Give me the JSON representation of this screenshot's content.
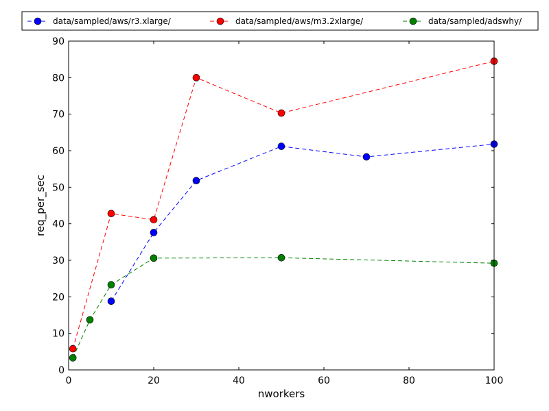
{
  "chart_data": {
    "type": "line",
    "xlabel": "nworkers",
    "ylabel": "req_per_sec",
    "xlim": [
      0,
      100
    ],
    "ylim": [
      0,
      90
    ],
    "xticks": [
      0,
      20,
      40,
      60,
      80,
      100
    ],
    "yticks": [
      0,
      10,
      20,
      30,
      40,
      50,
      60,
      70,
      80,
      90
    ],
    "grid": false,
    "legend_position": "top, outside plot, horizontal",
    "series": [
      {
        "name": "data/sampled/aws/r3.xlarge/",
        "color": "#0000ff",
        "line_style": "dashed",
        "marker": "circle",
        "points": [
          {
            "x": 10,
            "y": 18.8
          },
          {
            "x": 20,
            "y": 37.6
          },
          {
            "x": 30,
            "y": 51.8
          },
          {
            "x": 50,
            "y": 61.2
          },
          {
            "x": 70,
            "y": 58.3
          },
          {
            "x": 100,
            "y": 61.8
          }
        ]
      },
      {
        "name": "data/sampled/aws/m3.2xlarge/",
        "color": "#ff0000",
        "line_style": "dashed",
        "marker": "circle",
        "points": [
          {
            "x": 1,
            "y": 5.8
          },
          {
            "x": 10,
            "y": 42.8
          },
          {
            "x": 20,
            "y": 41.1
          },
          {
            "x": 30,
            "y": 80.0
          },
          {
            "x": 50,
            "y": 70.3
          },
          {
            "x": 100,
            "y": 84.5
          }
        ]
      },
      {
        "name": "data/sampled/adswhy/",
        "color": "#008000",
        "line_style": "dashed",
        "marker": "circle",
        "points": [
          {
            "x": 1,
            "y": 3.3
          },
          {
            "x": 5,
            "y": 13.7
          },
          {
            "x": 10,
            "y": 23.3
          },
          {
            "x": 20,
            "y": 30.6
          },
          {
            "x": 50,
            "y": 30.7
          },
          {
            "x": 100,
            "y": 29.2
          }
        ]
      }
    ]
  }
}
